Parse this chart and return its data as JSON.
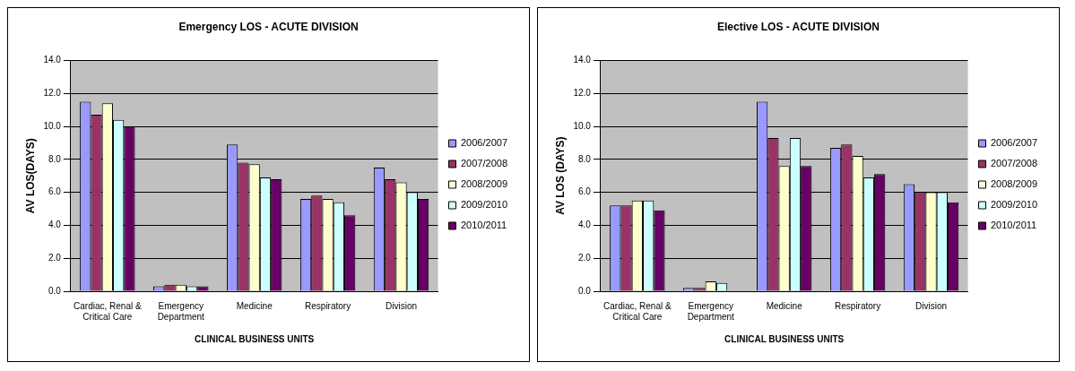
{
  "chart_data": [
    {
      "type": "bar",
      "title": "Emergency LOS - ACUTE DIVISION",
      "xlabel": "CLINICAL BUSINESS UNITS",
      "ylabel": "AV LOS(DAYS)",
      "categories": [
        "Cardiac, Renal & Critical Care",
        "Emergency Department",
        "Medicine",
        "Respiratory",
        "Division"
      ],
      "series": [
        {
          "name": "2006/2007",
          "color": "#9999ff",
          "values": [
            11.5,
            0.3,
            8.9,
            5.6,
            7.5
          ]
        },
        {
          "name": "2007/2008",
          "color": "#993366",
          "values": [
            10.7,
            0.4,
            7.8,
            5.8,
            6.8
          ]
        },
        {
          "name": "2008/2009",
          "color": "#ffffcc",
          "values": [
            11.4,
            0.4,
            7.7,
            5.6,
            6.6
          ]
        },
        {
          "name": "2009/2010",
          "color": "#ccffff",
          "values": [
            10.4,
            0.3,
            6.9,
            5.4,
            6.0
          ]
        },
        {
          "name": "2010/2011",
          "color": "#660066",
          "values": [
            10.0,
            0.3,
            6.8,
            4.6,
            5.6
          ]
        }
      ],
      "ylim": [
        0,
        14
      ],
      "yticks": [
        {
          "value": 0,
          "label": "0.0"
        },
        {
          "value": 2,
          "label": "2.0"
        },
        {
          "value": 4,
          "label": "4.0"
        },
        {
          "value": 6,
          "label": "6.0"
        },
        {
          "value": 8,
          "label": "8.0"
        },
        {
          "value": 10,
          "label": "10.0"
        },
        {
          "value": 12,
          "label": "12.0"
        },
        {
          "value": 14,
          "label": "14.0"
        }
      ],
      "grid": "y",
      "legend": "right"
    },
    {
      "type": "bar",
      "title": "Elective LOS - ACUTE DIVISION",
      "xlabel": "CLINICAL BUSINESS UNITS",
      "ylabel": "AV LOS (DAYS)",
      "categories": [
        "Cardiac, Renal & Critical Care",
        "Emergency Department",
        "Medicine",
        "Respiratory",
        "Division"
      ],
      "series": [
        {
          "name": "2006/2007",
          "color": "#9999ff",
          "values": [
            5.2,
            0.2,
            11.5,
            8.7,
            6.5
          ]
        },
        {
          "name": "2007/2008",
          "color": "#993366",
          "values": [
            5.2,
            0.2,
            9.3,
            8.9,
            6.0
          ]
        },
        {
          "name": "2008/2009",
          "color": "#ffffcc",
          "values": [
            5.5,
            0.6,
            7.6,
            8.2,
            6.0
          ]
        },
        {
          "name": "2009/2010",
          "color": "#ccffff",
          "values": [
            5.5,
            0.5,
            9.3,
            6.9,
            6.0
          ]
        },
        {
          "name": "2010/2011",
          "color": "#660066",
          "values": [
            4.9,
            null,
            7.6,
            7.1,
            5.4
          ]
        }
      ],
      "ylim": [
        0,
        14
      ],
      "yticks": [
        {
          "value": 0,
          "label": "0.0"
        },
        {
          "value": 2,
          "label": "2.0"
        },
        {
          "value": 4,
          "label": "4.0"
        },
        {
          "value": 6,
          "label": "6.0"
        },
        {
          "value": 8,
          "label": "8.0"
        },
        {
          "value": 10,
          "label": "10.0"
        },
        {
          "value": 12,
          "label": "12.0"
        },
        {
          "value": 14,
          "label": "14.0"
        }
      ],
      "grid": "y",
      "legend": "right"
    }
  ]
}
